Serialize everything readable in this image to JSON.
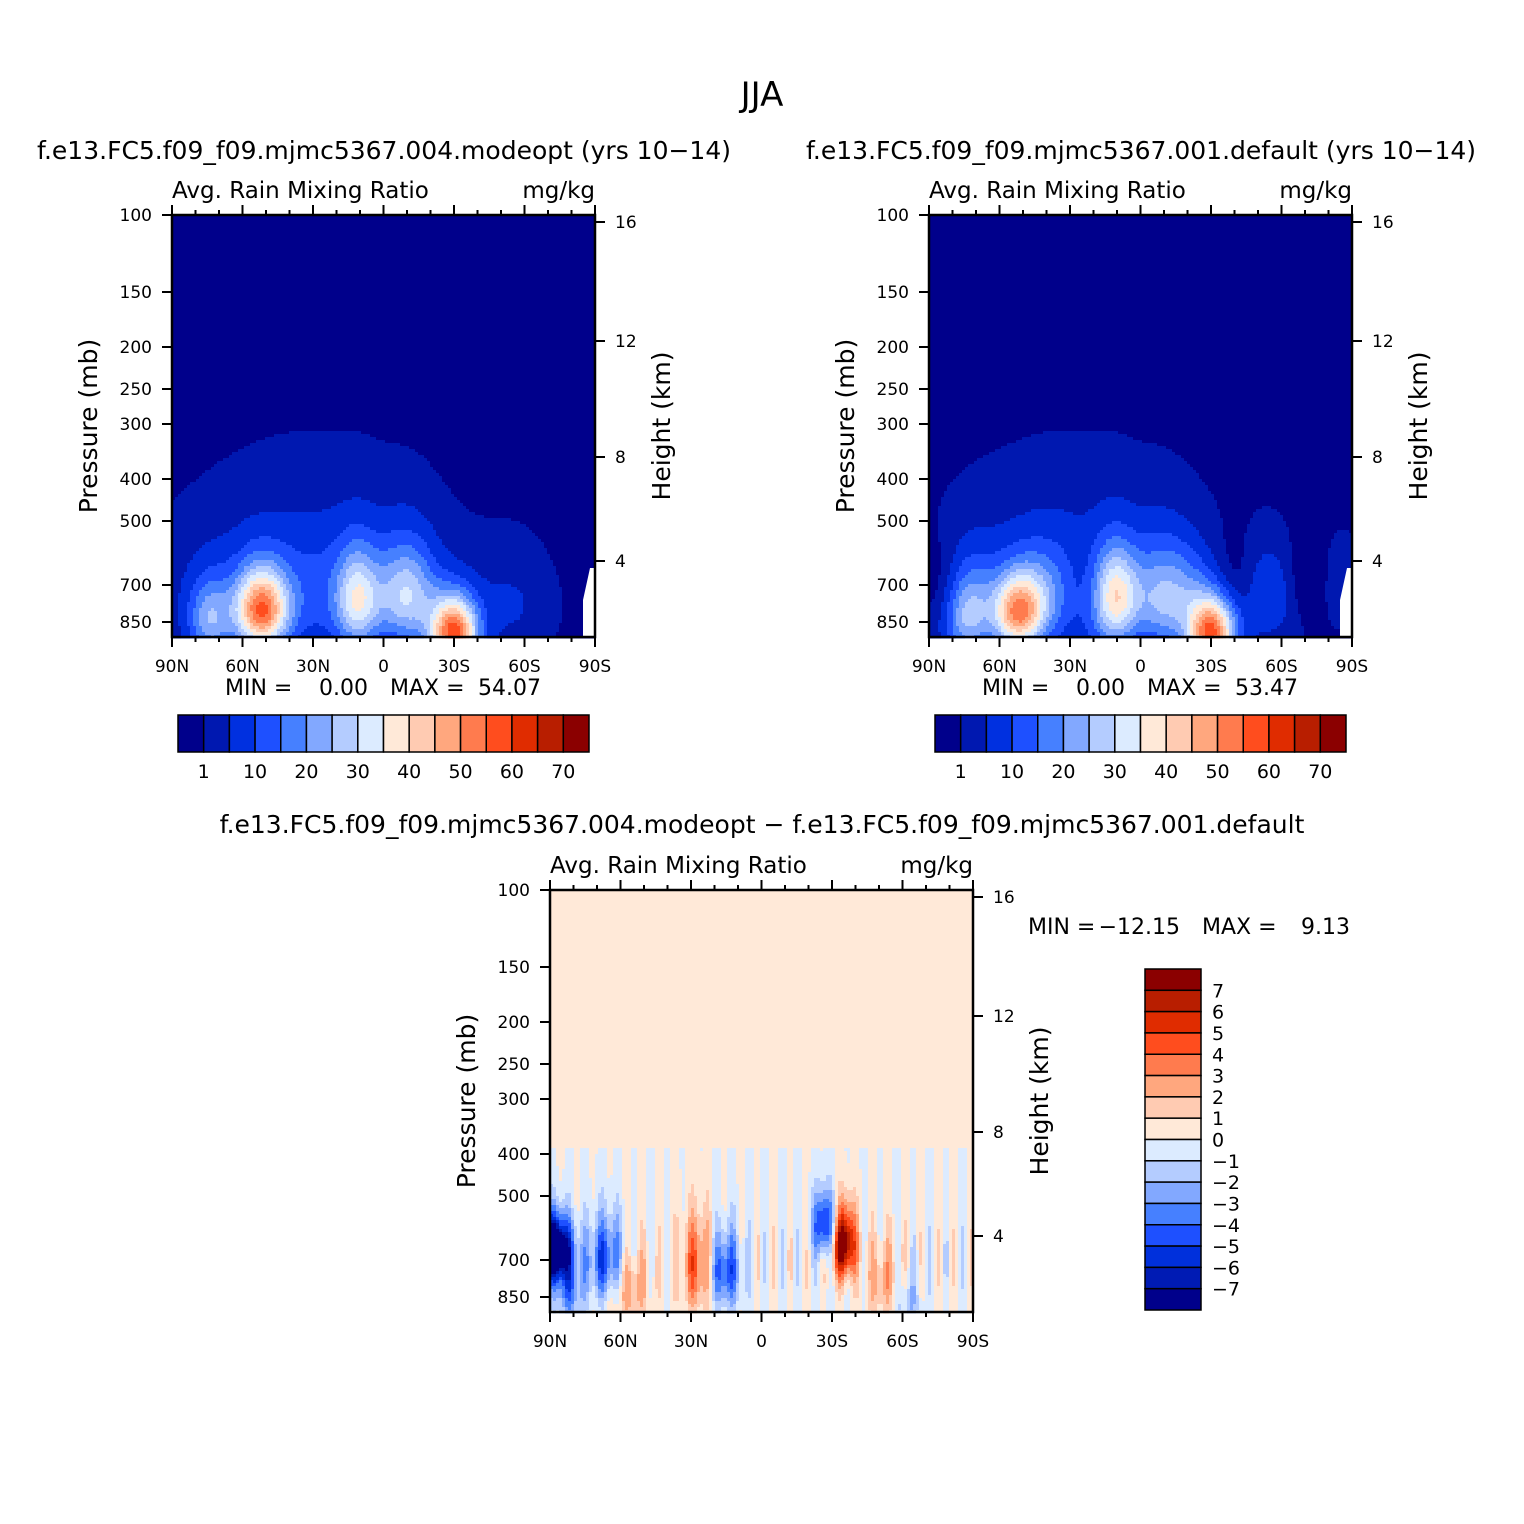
{
  "figure": {
    "title": "JJA"
  },
  "colors": {
    "abs": [
      "#00008b",
      "#0018b0",
      "#0030e0",
      "#1e50ff",
      "#4680ff",
      "#82a8ff",
      "#b4ccff",
      "#dcebff",
      "#ffe9d8",
      "#ffcbb2",
      "#ffa77e",
      "#ff7b4e",
      "#ff4d1e",
      "#e02c00",
      "#b81e00",
      "#8b0000"
    ],
    "diff": [
      "#00008b",
      "#001bb4",
      "#0030dc",
      "#1e50ff",
      "#4680ff",
      "#82a8ff",
      "#b4ccff",
      "#dcebff",
      "#ffe9d8",
      "#ffcbb2",
      "#ffa77e",
      "#ff7b4e",
      "#ff4d1e",
      "#e02c00",
      "#b81e00",
      "#8b0000"
    ]
  },
  "chart_data": [
    {
      "type": "heatmap",
      "title": "f.e13.FC5.f09_f09.mjmc5367.004.modeopt (yrs 10−14)",
      "field": "Avg. Rain Mixing Ratio",
      "units": "mg/kg",
      "ylabel": "Pressure (mb)",
      "ylabel_right": "Height (km)",
      "x_ticks": [
        "90N",
        "60N",
        "30N",
        "0",
        "30S",
        "60S",
        "90S"
      ],
      "y_ticks": [
        "100",
        "150",
        "200",
        "250",
        "300",
        "400",
        "500",
        "700",
        "850"
      ],
      "y_ticks_right": [
        "16",
        "12",
        "8",
        "4"
      ],
      "x_range": [
        90,
        -90
      ],
      "y_range_mb": [
        100,
        925
      ],
      "min_label": "MIN =",
      "min": "0.00",
      "max_label": "MAX =",
      "max": "54.07",
      "colorbar_labels": [
        "1",
        "10",
        "20",
        "30",
        "40",
        "50",
        "60",
        "70"
      ],
      "variant": 0
    },
    {
      "type": "heatmap",
      "title": "f.e13.FC5.f09_f09.mjmc5367.001.default (yrs 10−14)",
      "field": "Avg. Rain Mixing Ratio",
      "units": "mg/kg",
      "ylabel": "Pressure (mb)",
      "ylabel_right": "Height (km)",
      "x_ticks": [
        "90N",
        "60N",
        "30N",
        "0",
        "30S",
        "60S",
        "90S"
      ],
      "y_ticks": [
        "100",
        "150",
        "200",
        "250",
        "300",
        "400",
        "500",
        "700",
        "850"
      ],
      "y_ticks_right": [
        "16",
        "12",
        "8",
        "4"
      ],
      "x_range": [
        90,
        -90
      ],
      "y_range_mb": [
        100,
        925
      ],
      "min_label": "MIN =",
      "min": "0.00",
      "max_label": "MAX =",
      "max": "53.47",
      "colorbar_labels": [
        "1",
        "10",
        "20",
        "30",
        "40",
        "50",
        "60",
        "70"
      ],
      "variant": 1
    },
    {
      "type": "heatmap",
      "title": "f.e13.FC5.f09_f09.mjmc5367.004.modeopt − f.e13.FC5.f09_f09.mjmc5367.001.default",
      "field": "Avg. Rain Mixing Ratio",
      "units": "mg/kg",
      "ylabel": "Pressure (mb)",
      "ylabel_right": "Height (km)",
      "x_ticks": [
        "90N",
        "60N",
        "30N",
        "0",
        "30S",
        "60S",
        "90S"
      ],
      "y_ticks": [
        "100",
        "150",
        "200",
        "250",
        "300",
        "400",
        "500",
        "700",
        "850"
      ],
      "y_ticks_right": [
        "16",
        "12",
        "8",
        "4"
      ],
      "x_range": [
        90,
        -90
      ],
      "y_range_mb": [
        100,
        925
      ],
      "min_label": "MIN =",
      "min": "−12.15",
      "max_label": "MAX =",
      "max": "9.13",
      "colorbar_labels": [
        "7",
        "6",
        "5",
        "4",
        "3",
        "2",
        "1",
        "0",
        "−1",
        "−2",
        "−3",
        "−4",
        "−5",
        "−6",
        "−7"
      ]
    }
  ]
}
